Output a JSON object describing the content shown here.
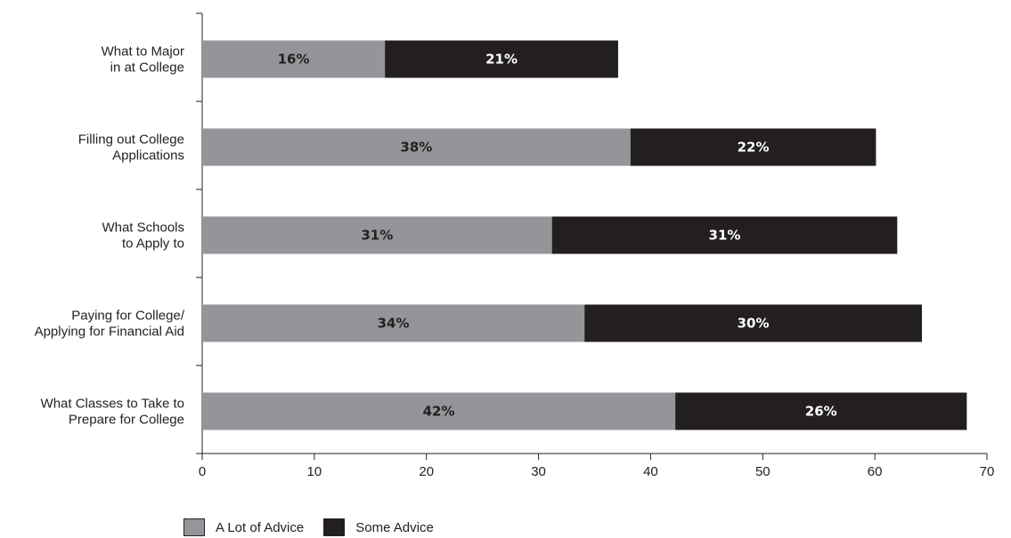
{
  "chart_data": {
    "type": "bar",
    "orientation": "horizontal",
    "stacked": true,
    "categories": [
      [
        "What to Major",
        "in at College"
      ],
      [
        "Filling out College",
        "Applications"
      ],
      [
        "What Schools",
        "to Apply to"
      ],
      [
        "Paying for College/",
        "Applying for Financial Aid"
      ],
      [
        "What Classes to Take to",
        "Prepare for College"
      ]
    ],
    "series": [
      {
        "name": "A Lot of Advice",
        "color": "#939598",
        "label_color": "#231f20",
        "values": [
          16.3,
          38.2,
          31.2,
          34.1,
          42.2
        ],
        "labels": [
          "16%",
          "38%",
          "31%",
          "34%",
          "42%"
        ]
      },
      {
        "name": "Some Advice",
        "color": "#231f20",
        "label_color": "#ffffff",
        "values": [
          20.8,
          21.9,
          30.8,
          30.1,
          26.0
        ],
        "labels": [
          "21%",
          "22%",
          "31%",
          "30%",
          "26%"
        ]
      }
    ],
    "xlim": [
      0,
      70
    ],
    "xticks": [
      "0",
      "10",
      "20",
      "30",
      "40",
      "50",
      "60",
      "70"
    ],
    "grid": false,
    "legend_position": "bottom-left"
  }
}
